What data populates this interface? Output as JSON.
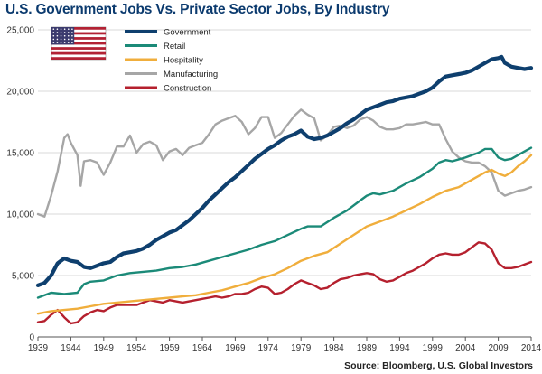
{
  "title": "U.S. Government Jobs Vs. Private Sector Jobs, By Industry",
  "source": "Source: Bloomberg, U.S. Global Investors",
  "colors": {
    "title": "#0b3a6e",
    "Government": "#0e3f6e",
    "Retail": "#1b8a78",
    "Hospitality": "#f0ae3c",
    "Manufacturing": "#a6a6a6",
    "Construction": "#b5202e",
    "flag_red": "#b22234",
    "flag_blue": "#3c3b6e"
  },
  "icon": "us-flag-icon",
  "chart_data": {
    "type": "line",
    "title": "U.S. Government Jobs Vs. Private Sector Jobs, By Industry",
    "xlabel": "",
    "ylabel": "",
    "xlim": [
      1939,
      2014
    ],
    "ylim": [
      0,
      25000
    ],
    "x_ticks": [
      "1939",
      "1944",
      "1949",
      "1954",
      "1959",
      "1964",
      "1969",
      "1974",
      "1979",
      "1984",
      "1989",
      "1994",
      "1999",
      "2004",
      "2009",
      "2014"
    ],
    "y_ticks": [
      "0",
      "5,000",
      "10,000",
      "15,000",
      "20,000",
      "25,000"
    ],
    "grid": "horizontal",
    "legend_position": "top-left",
    "series": [
      {
        "name": "Government",
        "x": [
          1939,
          1940,
          1941,
          1942,
          1943,
          1944,
          1945,
          1946,
          1947,
          1948,
          1949,
          1950,
          1951,
          1952,
          1953,
          1954,
          1955,
          1956,
          1957,
          1958,
          1959,
          1960,
          1961,
          1962,
          1963,
          1964,
          1965,
          1966,
          1967,
          1968,
          1969,
          1970,
          1971,
          1972,
          1973,
          1974,
          1975,
          1976,
          1977,
          1978,
          1979,
          1980,
          1981,
          1982,
          1983,
          1984,
          1985,
          1986,
          1987,
          1988,
          1989,
          1990,
          1991,
          1992,
          1993,
          1994,
          1995,
          1996,
          1997,
          1998,
          1999,
          2000,
          2001,
          2002,
          2003,
          2004,
          2005,
          2006,
          2007,
          2008,
          2009,
          2009.5,
          2010,
          2011,
          2012,
          2013,
          2014
        ],
        "y": [
          4200,
          4400,
          5000,
          6000,
          6400,
          6200,
          6100,
          5700,
          5600,
          5800,
          6000,
          6100,
          6500,
          6800,
          6900,
          7000,
          7200,
          7500,
          7900,
          8200,
          8500,
          8700,
          9100,
          9500,
          10000,
          10500,
          11100,
          11600,
          12100,
          12600,
          13000,
          13500,
          14000,
          14500,
          14900,
          15300,
          15600,
          16000,
          16300,
          16500,
          16800,
          16300,
          16100,
          16200,
          16400,
          16700,
          17000,
          17400,
          17700,
          18100,
          18500,
          18700,
          18900,
          19100,
          19200,
          19400,
          19500,
          19600,
          19800,
          20000,
          20300,
          20800,
          21200,
          21300,
          21400,
          21500,
          21700,
          22000,
          22300,
          22600,
          22700,
          22800,
          22300,
          22000,
          21900,
          21800,
          21900
        ]
      },
      {
        "name": "Retail",
        "x": [
          1939,
          1941,
          1943,
          1945,
          1946,
          1947,
          1949,
          1950,
          1951,
          1953,
          1955,
          1957,
          1959,
          1961,
          1963,
          1965,
          1967,
          1969,
          1971,
          1973,
          1975,
          1977,
          1979,
          1980,
          1982,
          1984,
          1986,
          1988,
          1989,
          1990,
          1991,
          1993,
          1995,
          1997,
          1999,
          2000,
          2001,
          2002,
          2004,
          2006,
          2007,
          2008,
          2009,
          2010,
          2011,
          2012,
          2013,
          2014
        ],
        "y": [
          3200,
          3600,
          3500,
          3600,
          4300,
          4500,
          4600,
          4800,
          5000,
          5200,
          5300,
          5400,
          5600,
          5700,
          5900,
          6200,
          6500,
          6800,
          7100,
          7500,
          7800,
          8300,
          8800,
          9000,
          9000,
          9700,
          10300,
          11100,
          11500,
          11700,
          11600,
          11900,
          12500,
          13000,
          13700,
          14200,
          14400,
          14300,
          14600,
          15000,
          15300,
          15300,
          14600,
          14400,
          14500,
          14800,
          15100,
          15400
        ]
      },
      {
        "name": "Hospitality",
        "x": [
          1939,
          1941,
          1943,
          1945,
          1947,
          1949,
          1951,
          1953,
          1955,
          1957,
          1959,
          1961,
          1963,
          1965,
          1967,
          1969,
          1971,
          1973,
          1975,
          1977,
          1979,
          1981,
          1983,
          1985,
          1987,
          1989,
          1991,
          1993,
          1995,
          1997,
          1999,
          2001,
          2003,
          2005,
          2007,
          2008,
          2009,
          2010,
          2011,
          2012,
          2013,
          2014
        ],
        "y": [
          1900,
          2100,
          2200,
          2300,
          2500,
          2700,
          2800,
          2900,
          3000,
          3100,
          3200,
          3300,
          3400,
          3600,
          3800,
          4100,
          4400,
          4800,
          5100,
          5600,
          6200,
          6600,
          6900,
          7600,
          8300,
          9000,
          9400,
          9800,
          10300,
          10800,
          11400,
          11900,
          12200,
          12800,
          13400,
          13600,
          13300,
          13100,
          13400,
          13900,
          14300,
          14800
        ]
      },
      {
        "name": "Manufacturing",
        "x": [
          1939,
          1940,
          1941,
          1942,
          1943,
          1943.5,
          1944,
          1945,
          1945.5,
          1946,
          1947,
          1948,
          1949,
          1950,
          1951,
          1952,
          1953,
          1954,
          1955,
          1956,
          1957,
          1958,
          1959,
          1960,
          1961,
          1962,
          1963,
          1964,
          1965,
          1966,
          1967,
          1968,
          1969,
          1970,
          1971,
          1972,
          1973,
          1974,
          1975,
          1976,
          1977,
          1978,
          1979,
          1980,
          1981,
          1982,
          1983,
          1984,
          1985,
          1986,
          1987,
          1988,
          1989,
          1990,
          1991,
          1992,
          1993,
          1994,
          1995,
          1996,
          1997,
          1998,
          1999,
          2000,
          2001,
          2002,
          2003,
          2004,
          2005,
          2006,
          2007,
          2008,
          2009,
          2010,
          2011,
          2012,
          2013,
          2014
        ],
        "y": [
          10000,
          9800,
          11500,
          13500,
          16200,
          16500,
          15800,
          14800,
          12300,
          14300,
          14400,
          14200,
          13200,
          14200,
          15500,
          15500,
          16400,
          15000,
          15700,
          15900,
          15600,
          14400,
          15100,
          15300,
          14800,
          15400,
          15600,
          15800,
          16500,
          17300,
          17600,
          17800,
          18000,
          17500,
          16500,
          17000,
          17900,
          17900,
          16200,
          16600,
          17300,
          18000,
          18500,
          18100,
          17800,
          16000,
          16400,
          17100,
          17200,
          17000,
          17200,
          17700,
          17900,
          17600,
          17100,
          16900,
          16900,
          17000,
          17300,
          17300,
          17400,
          17500,
          17300,
          17300,
          16100,
          15100,
          14600,
          14300,
          14200,
          14200,
          13900,
          13400,
          11900,
          11500,
          11700,
          11900,
          12000,
          12200
        ]
      },
      {
        "name": "Construction",
        "x": [
          1939,
          1940,
          1941,
          1942,
          1943,
          1944,
          1945,
          1946,
          1947,
          1948,
          1949,
          1950,
          1951,
          1952,
          1953,
          1954,
          1955,
          1956,
          1957,
          1958,
          1959,
          1960,
          1961,
          1962,
          1963,
          1964,
          1965,
          1966,
          1967,
          1968,
          1969,
          1970,
          1971,
          1972,
          1973,
          1974,
          1975,
          1976,
          1977,
          1978,
          1979,
          1980,
          1981,
          1982,
          1983,
          1984,
          1985,
          1986,
          1987,
          1988,
          1989,
          1990,
          1991,
          1992,
          1993,
          1994,
          1995,
          1996,
          1997,
          1998,
          1999,
          2000,
          2001,
          2002,
          2003,
          2004,
          2005,
          2006,
          2007,
          2008,
          2009,
          2010,
          2011,
          2012,
          2013,
          2014
        ],
        "y": [
          1200,
          1300,
          1800,
          2200,
          1600,
          1100,
          1200,
          1700,
          2000,
          2200,
          2100,
          2400,
          2600,
          2600,
          2600,
          2600,
          2800,
          3000,
          2900,
          2800,
          3000,
          2900,
          2800,
          2900,
          3000,
          3100,
          3200,
          3300,
          3200,
          3300,
          3500,
          3500,
          3600,
          3900,
          4100,
          4000,
          3500,
          3600,
          3900,
          4300,
          4600,
          4400,
          4200,
          3900,
          4000,
          4400,
          4700,
          4800,
          5000,
          5100,
          5200,
          5100,
          4700,
          4500,
          4600,
          4900,
          5200,
          5400,
          5700,
          6000,
          6400,
          6700,
          6800,
          6700,
          6700,
          6900,
          7300,
          7700,
          7600,
          7100,
          6000,
          5600,
          5600,
          5700,
          5900,
          6100
        ]
      }
    ]
  }
}
